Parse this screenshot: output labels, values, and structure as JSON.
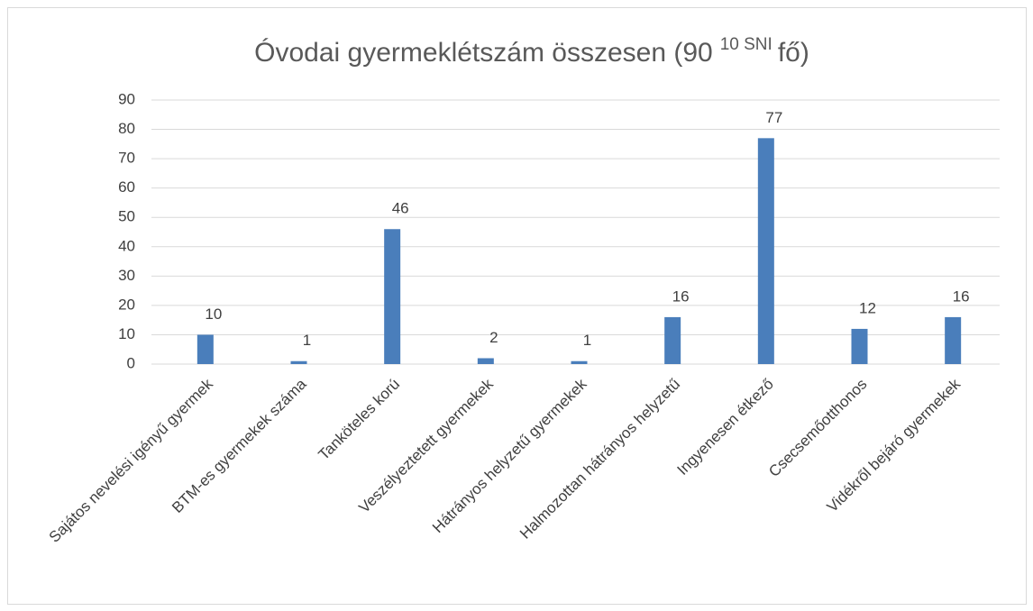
{
  "chart_data": {
    "type": "bar",
    "title": {
      "main": "Óvodai gyermeklétszám összesen (90",
      "superscript": "10 SNI",
      "end": "fő)"
    },
    "categories": [
      "Sajátos nevelési igényű gyermek",
      "BTM-es gyermekek száma",
      "Tanköteles korú",
      "Veszélyeztetett gyermekek",
      "Hátrányos helyzetű gyermekek",
      "Halmozottan hátrányos helyzetű",
      "Ingyenesen étkező",
      "Csecsemőotthonos",
      "Vidékről bejáró gyermekek"
    ],
    "values": [
      10,
      1,
      46,
      2,
      1,
      16,
      77,
      12,
      16
    ],
    "color": "#4a7ebb",
    "ylim": [
      0,
      90
    ],
    "yticks": [
      0,
      10,
      20,
      30,
      40,
      50,
      60,
      70,
      80,
      90
    ],
    "grid": true,
    "data_labels": true
  }
}
